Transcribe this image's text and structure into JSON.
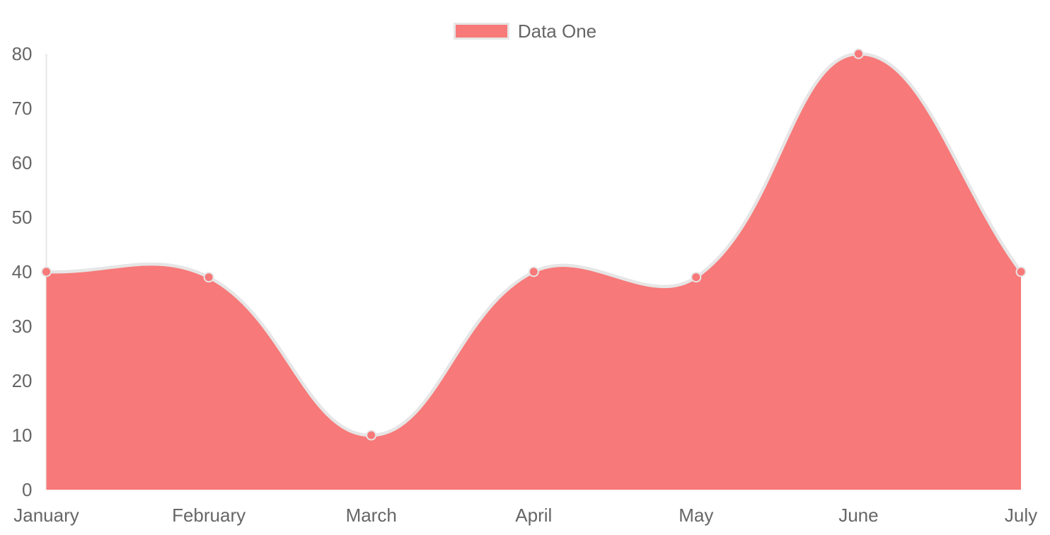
{
  "chart_data": {
    "type": "area",
    "title": "",
    "categories": [
      "January",
      "February",
      "March",
      "April",
      "May",
      "June",
      "July"
    ],
    "series": [
      {
        "name": "Data One",
        "values": [
          40,
          39,
          10,
          40,
          39,
          80,
          40
        ]
      }
    ],
    "ylim": [
      0,
      80
    ],
    "yticks": [
      0,
      10,
      20,
      30,
      40,
      50,
      60,
      70,
      80
    ],
    "grid": false,
    "legend_position": "top",
    "line_tension": 0.4,
    "colors": {
      "fill": "#f87979",
      "line": "#e6e6e6",
      "point_fill": "#f87979",
      "point_border": "#e6e6e6",
      "axis_line": "#e6e6e6",
      "tick_text": "#666666",
      "legend_text": "#666666",
      "background": "#ffffff"
    }
  }
}
